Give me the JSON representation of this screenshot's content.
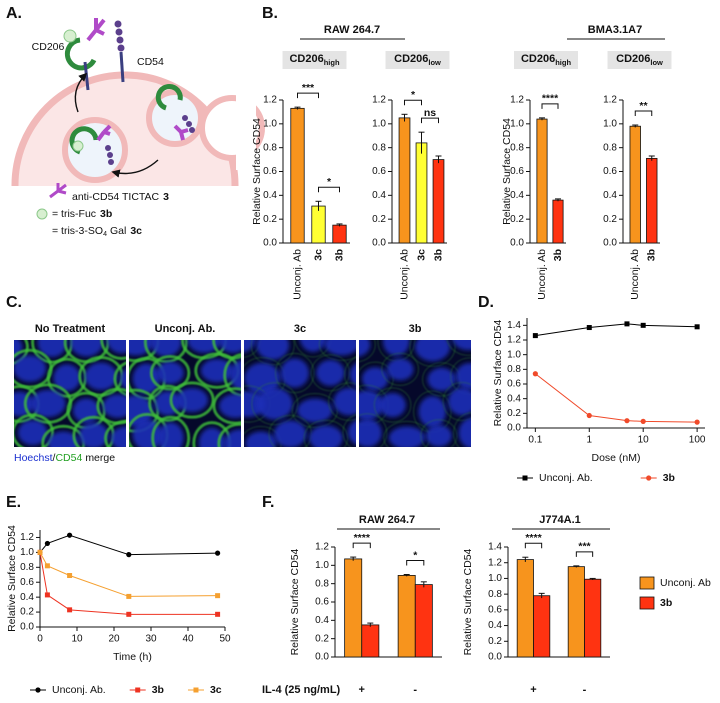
{
  "panel_labels": [
    "A.",
    "B.",
    "C.",
    "D.",
    "E.",
    "F."
  ],
  "schematic": {
    "receptor": "CD206",
    "antigen": "CD54",
    "legend": [
      {
        "text": "anti-CD54 TICTAC",
        "bold": "3"
      },
      {
        "text": "= tris-Fuc",
        "bold": "3b"
      },
      {
        "text": "= tris-3-SO",
        "sub": "4",
        "text2": "Gal",
        "bold": "3c"
      }
    ]
  },
  "panel_b": {
    "groups": [
      "RAW 264.7",
      "BMA3.1A7"
    ]
  },
  "panel_c": {
    "titles": [
      "No Treatment",
      "Unconj. Ab.",
      "3c",
      "3b"
    ],
    "caption": {
      "stain1": "Hoechst",
      "sep": "/",
      "stain2": "CD54",
      "suffix": "merge"
    }
  },
  "panel_f": {
    "groups": [
      "RAW 264.7",
      "J774A.1"
    ]
  },
  "chart_data": [
    {
      "type": "bar",
      "subtitle": "CD206",
      "subtitle_sub": "high",
      "ylabel": "Relative Surface CD54",
      "categories": [
        "Unconj. Ab",
        "3c",
        "3b"
      ],
      "values": [
        1.13,
        0.31,
        0.15
      ],
      "errors": [
        0.01,
        0.04,
        0.01
      ],
      "colors": [
        "#f7941d",
        "#ffff33",
        "#ff3311"
      ],
      "ylim": [
        0,
        1.2
      ],
      "yticks": [
        {
          "value": 0,
          "label": "0.0"
        },
        0.2,
        0.4,
        0.6,
        0.8,
        {
          "value": 1,
          "label": "1.0"
        },
        1.2
      ],
      "annotations": [
        {
          "between": [
            "Unconj. Ab",
            "3c"
          ],
          "text": "***"
        },
        {
          "between": [
            "3c",
            "3b"
          ],
          "text": "*"
        }
      ]
    },
    {
      "type": "bar",
      "subtitle": "CD206",
      "subtitle_sub": "low",
      "categories": [
        "Unconj. Ab",
        "3c",
        "3b"
      ],
      "values": [
        1.05,
        0.84,
        0.7
      ],
      "errors": [
        0.03,
        0.09,
        0.03
      ],
      "colors": [
        "#f7941d",
        "#ffff33",
        "#ff3311"
      ],
      "ylim": [
        0,
        1.2
      ],
      "yticks": [
        {
          "value": 0,
          "label": "0.0"
        },
        0.2,
        0.4,
        0.6,
        0.8,
        {
          "value": 1,
          "label": "1.0"
        },
        1.2
      ],
      "annotations": [
        {
          "between": [
            "Unconj. Ab",
            "3c"
          ],
          "text": "*"
        },
        {
          "between": [
            "3c",
            "3b"
          ],
          "text": "ns"
        }
      ]
    },
    {
      "type": "bar",
      "subtitle": "CD206",
      "subtitle_sub": "high",
      "ylabel": "Relative Surface CD54",
      "categories": [
        "Unconj. Ab",
        "3b"
      ],
      "values": [
        1.04,
        0.36
      ],
      "errors": [
        0.01,
        0.01
      ],
      "colors": [
        "#f7941d",
        "#ff3311"
      ],
      "ylim": [
        0,
        1.2
      ],
      "yticks": [
        {
          "value": 0,
          "label": "0.0"
        },
        0.2,
        0.4,
        0.6,
        0.8,
        {
          "value": 1,
          "label": "1.0"
        },
        1.2
      ],
      "annotations": [
        {
          "between": [
            "Unconj. Ab",
            "3b"
          ],
          "text": "****"
        }
      ]
    },
    {
      "type": "bar",
      "subtitle": "CD206",
      "subtitle_sub": "low",
      "categories": [
        "Unconj. Ab",
        "3b"
      ],
      "values": [
        0.98,
        0.71
      ],
      "errors": [
        0.01,
        0.02
      ],
      "colors": [
        "#f7941d",
        "#ff3311"
      ],
      "ylim": [
        0,
        1.2
      ],
      "yticks": [
        {
          "value": 0,
          "label": "0.0"
        },
        0.2,
        0.4,
        0.6,
        0.8,
        {
          "value": 1,
          "label": "1.0"
        },
        1.2
      ],
      "annotations": [
        {
          "between": [
            "Unconj. Ab",
            "3b"
          ],
          "text": "**"
        }
      ]
    },
    {
      "type": "line",
      "log_x": true,
      "xlabel": "Dose (nM)",
      "ylabel": "Relative Surface CD54",
      "x": [
        0.1,
        1,
        5,
        10,
        100
      ],
      "xlim": [
        0.07,
        140
      ],
      "xticks": [
        0.1,
        1,
        10,
        100
      ],
      "ylim": [
        0,
        1.5
      ],
      "yticks": [
        {
          "value": 0,
          "label": "0.0"
        },
        0.2,
        0.4,
        0.6,
        0.8,
        {
          "value": 1,
          "label": "1.0"
        },
        1.2,
        1.4
      ],
      "legend": "bottom",
      "series": [
        {
          "name": "Unconj. Ab.",
          "color": "#000000",
          "marker": "square",
          "values": [
            1.26,
            1.37,
            1.42,
            1.4,
            1.38
          ]
        },
        {
          "name": "3b",
          "color": "#f04a2a",
          "marker": "circle",
          "values": [
            0.74,
            0.17,
            0.1,
            0.09,
            0.08
          ]
        }
      ]
    },
    {
      "type": "line",
      "log_x": false,
      "xlabel": "Time (h)",
      "ylabel": "Relative Surface CD54",
      "x": [
        0,
        2,
        8,
        24,
        48
      ],
      "xlim": [
        0,
        50
      ],
      "xticks": [
        0,
        10,
        20,
        30,
        40,
        50
      ],
      "ylim": [
        0,
        1.3
      ],
      "yticks": [
        {
          "value": 0,
          "label": "0.0"
        },
        0.2,
        0.4,
        0.6,
        0.8,
        {
          "value": 1,
          "label": "1.0"
        },
        1.2
      ],
      "legend": "bottom",
      "series": [
        {
          "name": "Unconj. Ab.",
          "color": "#000000",
          "marker": "circle",
          "values": [
            1.0,
            1.12,
            1.23,
            0.97,
            0.99
          ]
        },
        {
          "name": "3b",
          "color": "#ee3322",
          "marker": "square",
          "values": [
            1.0,
            0.43,
            0.23,
            0.17,
            0.17
          ]
        },
        {
          "name": "3c",
          "color": "#f5a030",
          "marker": "square",
          "values": [
            1.0,
            0.82,
            0.69,
            0.41,
            0.42
          ]
        }
      ]
    },
    {
      "type": "grouped_bar",
      "xlabel": "IL-4 (25 ng/mL)",
      "ylabel": "Relative Surface CD54",
      "categories": [
        "+",
        "-"
      ],
      "series": [
        {
          "color": "#f7941d",
          "values": [
            1.07,
            0.89
          ],
          "errors": [
            0.02,
            0.01
          ]
        },
        {
          "color": "#ff3311",
          "values": [
            0.35,
            0.79
          ],
          "errors": [
            0.02,
            0.03
          ]
        }
      ],
      "ylim": [
        0,
        1.2
      ],
      "yticks": [
        {
          "value": 0,
          "label": "0.0"
        },
        0.2,
        0.4,
        0.6,
        0.8,
        {
          "value": 1,
          "label": "1.0"
        },
        1.2
      ],
      "annotations": [
        {
          "category": "+",
          "text": "****"
        },
        {
          "category": "-",
          "text": "*"
        }
      ]
    },
    {
      "type": "grouped_bar",
      "ylabel": "Relative Surface CD54",
      "categories": [
        "+",
        "-"
      ],
      "legend": "right",
      "series": [
        {
          "name": "Unconj. Ab",
          "color": "#f7941d",
          "values": [
            1.24,
            1.15
          ],
          "errors": [
            0.03,
            0.01
          ]
        },
        {
          "name": "3b",
          "color": "#ff3311",
          "values": [
            0.78,
            0.99
          ],
          "errors": [
            0.03,
            0.01
          ]
        }
      ],
      "ylim": [
        0,
        1.4
      ],
      "yticks": [
        {
          "value": 0,
          "label": "0.0"
        },
        0.2,
        0.4,
        0.6,
        0.8,
        {
          "value": 1,
          "label": "1.0"
        },
        1.2,
        1.4
      ],
      "annotations": [
        {
          "category": "+",
          "text": "****"
        },
        {
          "category": "-",
          "text": "***"
        }
      ]
    }
  ]
}
